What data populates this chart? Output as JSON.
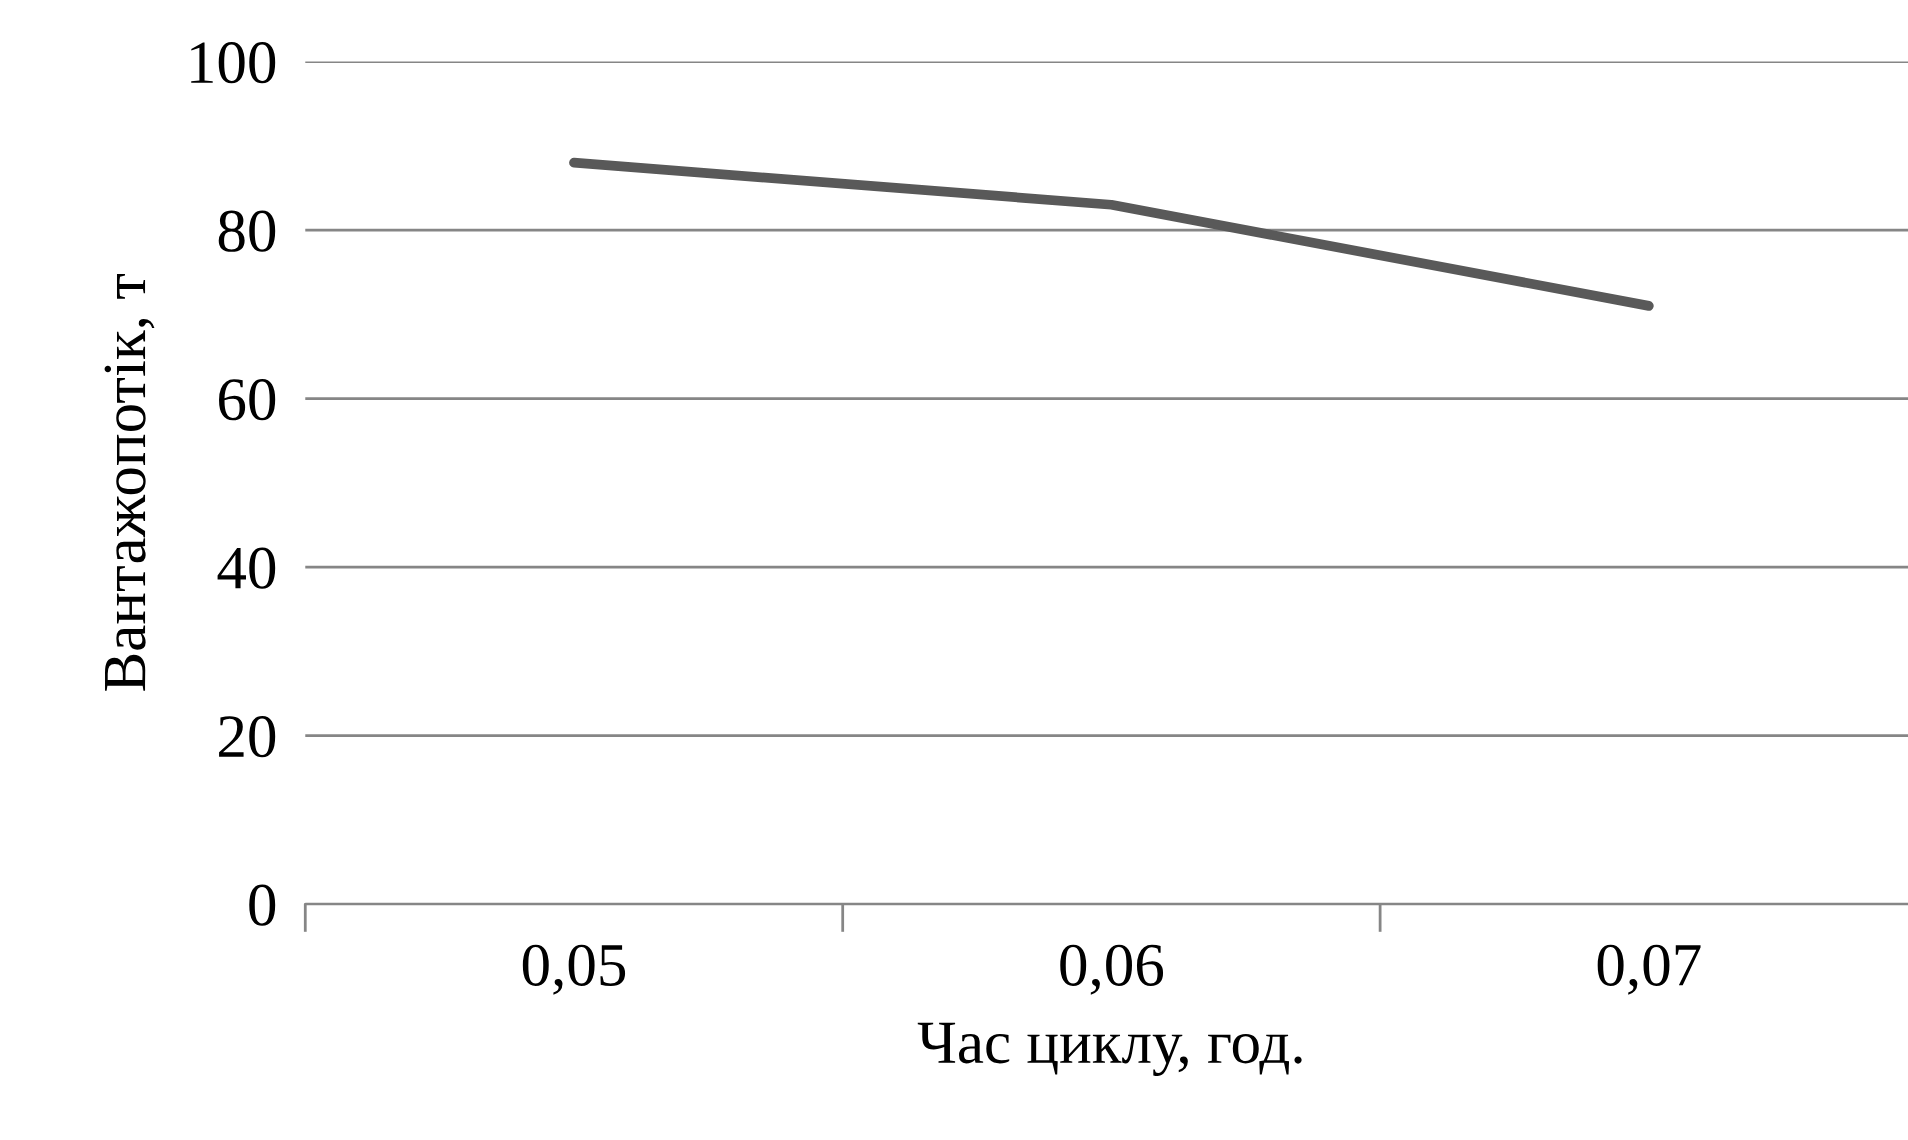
{
  "chart_data": {
    "type": "line",
    "xlabel": "Час циклу, год.",
    "ylabel": "Вантажопотік, т",
    "categories": [
      "0,05",
      "0,06",
      "0,07"
    ],
    "series": [
      {
        "color": "#595959",
        "values": [
          88,
          83,
          71
        ]
      }
    ],
    "ylim": [
      0,
      100
    ],
    "yticks": [
      0,
      20,
      40,
      60,
      80,
      100
    ],
    "grid": "y",
    "legend": false,
    "marker": "none",
    "line_style": "solid"
  }
}
